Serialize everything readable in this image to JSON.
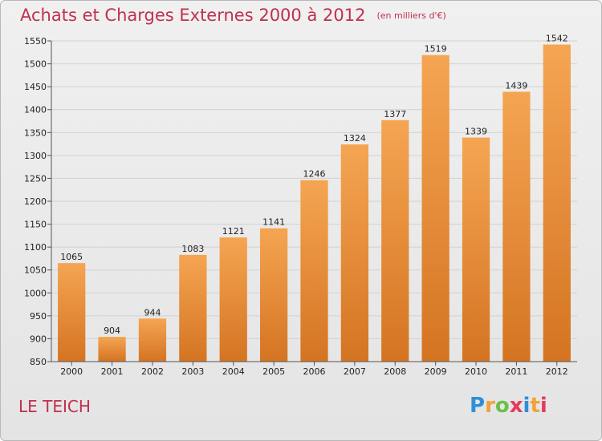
{
  "title": "Achats et Charges Externes 2000 à 2012",
  "unit": "(en milliers d'€)",
  "commune": "LE TEICH",
  "logo": {
    "text": "Proxiti",
    "colors": [
      "#2f8fd8",
      "#f2a13a",
      "#6ac04a",
      "#e43c5c",
      "#2f8fd8",
      "#f2a13a",
      "#e43c5c"
    ]
  },
  "colors": {
    "bar_top": "#f5a552",
    "bar_bottom": "#d47422",
    "title": "#c0304f"
  },
  "chart_data": {
    "type": "bar",
    "categories": [
      "2000",
      "2001",
      "2002",
      "2003",
      "2004",
      "2005",
      "2006",
      "2007",
      "2008",
      "2009",
      "2010",
      "2011",
      "2012"
    ],
    "values": [
      1065,
      904,
      944,
      1083,
      1121,
      1141,
      1246,
      1324,
      1377,
      1519,
      1339,
      1439,
      1542
    ],
    "ylim": [
      850,
      1550
    ],
    "yticks": [
      850,
      900,
      950,
      1000,
      1050,
      1100,
      1150,
      1200,
      1250,
      1300,
      1350,
      1400,
      1450,
      1500,
      1550
    ],
    "grid": true
  }
}
